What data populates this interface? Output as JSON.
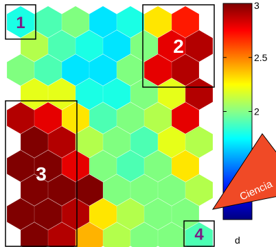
{
  "chart_data": {
    "type": "heatmap",
    "layout": "hexagonal",
    "grid_cols": 7,
    "grid_rows": 10,
    "values": [
      [
        1.8,
        1.9,
        2.0,
        1.7,
        1.8,
        2.3,
        2.7
      ],
      [
        2.1,
        1.9,
        1.8,
        1.7,
        2.0,
        2.8,
        2.9
      ],
      [
        2.0,
        1.9,
        1.7,
        1.7,
        2.0,
        2.8,
        2.9
      ],
      [
        2.2,
        2.2,
        1.8,
        1.8,
        2.0,
        2.2,
        2.9
      ],
      [
        2.9,
        2.8,
        2.3,
        1.9,
        2.0,
        2.1,
        2.8
      ],
      [
        3.0,
        2.9,
        2.1,
        2.0,
        1.9,
        2.2,
        2.1
      ],
      [
        3.0,
        3.0,
        2.8,
        2.0,
        1.9,
        2.0,
        2.3
      ],
      [
        3.0,
        3.0,
        3.0,
        2.0,
        2.0,
        2.0,
        2.1
      ],
      [
        3.0,
        3.0,
        2.9,
        2.3,
        2.1,
        2.0,
        2.0
      ],
      [
        3.0,
        2.9,
        2.4,
        2.1,
        2.0,
        2.0,
        1.9
      ]
    ],
    "colorbar": {
      "min": 1,
      "max": 3,
      "tick_labels": [
        "3",
        "2.5",
        "2"
      ],
      "tick_values": [
        3,
        2.5,
        2
      ],
      "label": "d"
    },
    "clusters": [
      {
        "label": "1",
        "cells": [
          [
            0,
            0
          ]
        ]
      },
      {
        "label": "2",
        "cells": [
          [
            0,
            6
          ],
          [
            1,
            5
          ],
          [
            1,
            6
          ],
          [
            2,
            5
          ],
          [
            2,
            6
          ]
        ]
      },
      {
        "label": "3",
        "cells": [
          [
            4,
            0
          ],
          [
            4,
            1
          ],
          [
            5,
            0
          ],
          [
            5,
            1
          ],
          [
            6,
            0
          ],
          [
            6,
            1
          ],
          [
            7,
            0
          ],
          [
            7,
            1
          ],
          [
            8,
            0
          ],
          [
            8,
            1
          ],
          [
            9,
            0
          ],
          [
            9,
            1
          ]
        ]
      },
      {
        "label": "4",
        "cells": [
          [
            9,
            6
          ]
        ]
      }
    ],
    "callout_text": "Ciencia"
  },
  "colors": {
    "cluster_label_text": "#ffffff",
    "small_cluster_label_text": "#7a1d86",
    "box_stroke": "#000000",
    "callout_fill": "#f04a26",
    "callout_stroke": "#000000"
  }
}
